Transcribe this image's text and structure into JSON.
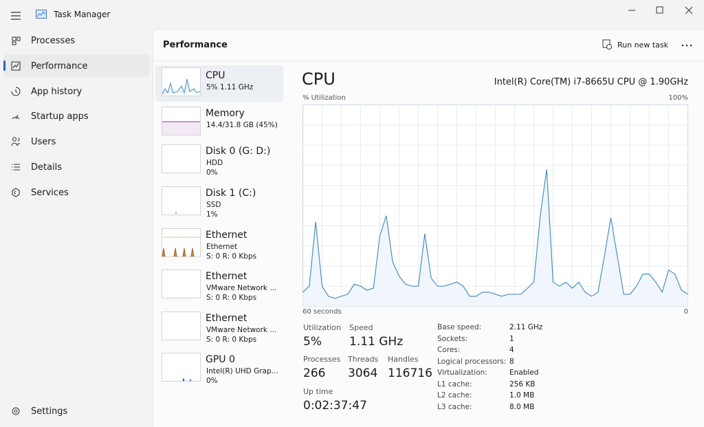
{
  "window": {
    "title": "Task Manager"
  },
  "nav": {
    "items": [
      "Processes",
      "Performance",
      "App history",
      "Startup apps",
      "Users",
      "Details",
      "Services"
    ],
    "selected": 1,
    "settings": "Settings"
  },
  "header": {
    "title": "Performance",
    "action": "Run new task"
  },
  "devices": [
    {
      "name": "CPU",
      "lines": [
        "5%  1.11 GHz"
      ]
    },
    {
      "name": "Memory",
      "lines": [
        "14.4/31.8 GB (45%)"
      ]
    },
    {
      "name": "Disk 0 (G: D:)",
      "lines": [
        "HDD",
        "0%"
      ]
    },
    {
      "name": "Disk 1 (C:)",
      "lines": [
        "SSD",
        "1%"
      ]
    },
    {
      "name": "Ethernet",
      "lines": [
        "Ethernet",
        "S: 0 R: 0 Kbps"
      ]
    },
    {
      "name": "Ethernet",
      "lines": [
        "VMware Network ...",
        "S: 0 R: 0 Kbps"
      ]
    },
    {
      "name": "Ethernet",
      "lines": [
        "VMware Network ...",
        "S: 0 R: 0 Kbps"
      ]
    },
    {
      "name": "GPU 0",
      "lines": [
        "Intel(R) UHD Grap...",
        "0%"
      ]
    }
  ],
  "detail": {
    "title": "CPU",
    "model": "Intel(R) Core(TM) i7-8665U CPU @ 1.90GHz",
    "graph": {
      "y_label": "% Utilization",
      "y_max_label": "100%",
      "x_label": "60 seconds",
      "x_end_label": "0",
      "ylim": [
        0,
        100
      ],
      "values": [
        7,
        10,
        42,
        10,
        5,
        4,
        5,
        6,
        11,
        10,
        8,
        9,
        35,
        45,
        22,
        15,
        11,
        10,
        10,
        36,
        14,
        10,
        10,
        11,
        12,
        10,
        5,
        5,
        7,
        7,
        6,
        5,
        6,
        6,
        6,
        9,
        12,
        45,
        68,
        12,
        10,
        12,
        9,
        12,
        7,
        5,
        7,
        25,
        44,
        25,
        6,
        6,
        10,
        16,
        16,
        12,
        7,
        18,
        16,
        8,
        6
      ]
    },
    "stats": [
      {
        "label": "Utilization",
        "value": "5%"
      },
      {
        "label": "Speed",
        "value": "1.11 GHz"
      },
      {
        "label": "Processes",
        "value": "266"
      },
      {
        "label": "Threads",
        "value": "3064"
      },
      {
        "label": "Handles",
        "value": "116716"
      },
      {
        "label": "Up time",
        "value": "0:02:37:47"
      }
    ],
    "specs": [
      [
        "Base speed:",
        "2.11 GHz"
      ],
      [
        "Sockets:",
        "1"
      ],
      [
        "Cores:",
        "4"
      ],
      [
        "Logical processors:",
        "8"
      ],
      [
        "Virtualization:",
        "Enabled"
      ],
      [
        "L1 cache:",
        "256 KB"
      ],
      [
        "L2 cache:",
        "1.0 MB"
      ],
      [
        "L3 cache:",
        "8.0 MB"
      ]
    ]
  }
}
